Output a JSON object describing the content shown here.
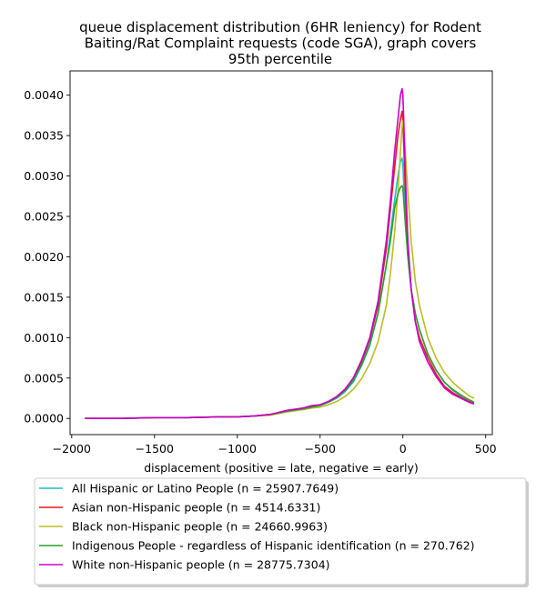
{
  "chart_data": {
    "type": "line",
    "title_lines": [
      "queue displacement distribution (6HR leniency) for Rodent",
      "Baiting/Rat Complaint  requests (code SGA), graph covers",
      "95th percentile"
    ],
    "xlabel": "displacement (positive = late, negative = early)",
    "ylabel": "",
    "xlim": [
      -2010,
      540
    ],
    "ylim": [
      -0.0002,
      0.0043
    ],
    "x_ticks": [
      -2000,
      -1500,
      -1000,
      -500,
      0,
      500
    ],
    "x_tick_labels": [
      "−2000",
      "−1500",
      "−1000",
      "−500",
      "0",
      "500"
    ],
    "y_ticks": [
      0.0,
      0.0005,
      0.001,
      0.0015,
      0.002,
      0.0025,
      0.003,
      0.0035,
      0.004
    ],
    "y_tick_labels": [
      "0.0000",
      "0.0005",
      "0.0010",
      "0.0015",
      "0.0020",
      "0.0025",
      "0.0030",
      "0.0035",
      "0.0040"
    ],
    "grid": false,
    "legend_placement": "below plot",
    "x": [
      -1920,
      -1700,
      -1500,
      -1300,
      -1100,
      -1000,
      -900,
      -800,
      -700,
      -600,
      -550,
      -500,
      -450,
      -400,
      -350,
      -300,
      -250,
      -200,
      -150,
      -100,
      -75,
      -50,
      -30,
      -15,
      -5,
      0,
      5,
      15,
      30,
      50,
      75,
      100,
      150,
      200,
      250,
      300,
      350,
      400,
      430
    ],
    "series": [
      {
        "name": "All Hispanic or Latino People (n = 25907.7649)",
        "color": "#17becf",
        "values": [
          0.0,
          0.0,
          1e-05,
          1e-05,
          2e-05,
          2e-05,
          3e-05,
          5e-05,
          9e-05,
          0.00012,
          0.00014,
          0.00016,
          0.0002,
          0.00025,
          0.00033,
          0.00045,
          0.00065,
          0.0009,
          0.0013,
          0.0019,
          0.0023,
          0.0027,
          0.003,
          0.00318,
          0.00322,
          0.00315,
          0.0029,
          0.0025,
          0.002,
          0.0016,
          0.0013,
          0.0011,
          0.0008,
          0.0006,
          0.00045,
          0.00035,
          0.00028,
          0.00023,
          0.0002
        ]
      },
      {
        "name": "Asian non-Hispanic people (n = 4514.6331)",
        "color": "#e41a1c",
        "values": [
          0.0,
          0.0,
          1e-05,
          1e-05,
          2e-05,
          2e-05,
          3e-05,
          5e-05,
          9e-05,
          0.00013,
          0.00015,
          0.00017,
          0.00021,
          0.00027,
          0.00036,
          0.00049,
          0.0007,
          0.00098,
          0.0014,
          0.0021,
          0.0026,
          0.0031,
          0.0035,
          0.0037,
          0.0038,
          0.0037,
          0.0034,
          0.0028,
          0.0021,
          0.0016,
          0.0012,
          0.001,
          0.00075,
          0.00055,
          0.0004,
          0.00032,
          0.00026,
          0.00021,
          0.00019
        ]
      },
      {
        "name": "Black non-Hispanic people (n = 24660.9963)",
        "color": "#bcbd22",
        "values": [
          0.0,
          0.0,
          1e-05,
          1e-05,
          2e-05,
          2e-05,
          3e-05,
          4e-05,
          8e-05,
          0.00011,
          0.00013,
          0.00014,
          0.00017,
          0.00021,
          0.00027,
          0.00036,
          0.00049,
          0.00068,
          0.00095,
          0.0014,
          0.0018,
          0.0023,
          0.0028,
          0.0033,
          0.0036,
          0.00368,
          0.0036,
          0.0033,
          0.0028,
          0.0022,
          0.0017,
          0.0014,
          0.001,
          0.00075,
          0.00057,
          0.00045,
          0.00036,
          0.00028,
          0.00025
        ]
      },
      {
        "name": "Indigenous People - regardless of Hispanic identification (n = 270.762)",
        "color": "#2ca02c",
        "values": [
          0.0,
          0.0,
          1e-05,
          1e-05,
          2e-05,
          2e-05,
          3e-05,
          5e-05,
          9e-05,
          0.00012,
          0.00014,
          0.00016,
          0.0002,
          0.00026,
          0.00034,
          0.00047,
          0.00066,
          0.00092,
          0.0013,
          0.0019,
          0.0022,
          0.0026,
          0.00278,
          0.00286,
          0.00288,
          0.00285,
          0.0027,
          0.0024,
          0.002,
          0.0016,
          0.0013,
          0.0011,
          0.0008,
          0.0006,
          0.00045,
          0.00036,
          0.00029,
          0.00023,
          0.0002
        ]
      },
      {
        "name": "White non-Hispanic people (n = 28775.7304)",
        "color": "#cc00cc",
        "values": [
          0.0,
          0.0,
          1e-05,
          1e-05,
          2e-05,
          2e-05,
          3e-05,
          5e-05,
          0.0001,
          0.00013,
          0.00016,
          0.00017,
          0.00021,
          0.00027,
          0.00036,
          0.0005,
          0.00072,
          0.001,
          0.00145,
          0.0022,
          0.0027,
          0.0033,
          0.0037,
          0.004,
          0.00408,
          0.004,
          0.0037,
          0.003,
          0.0022,
          0.0016,
          0.0012,
          0.00095,
          0.0007,
          0.00052,
          0.00038,
          0.0003,
          0.00025,
          0.0002,
          0.00018
        ]
      }
    ]
  }
}
